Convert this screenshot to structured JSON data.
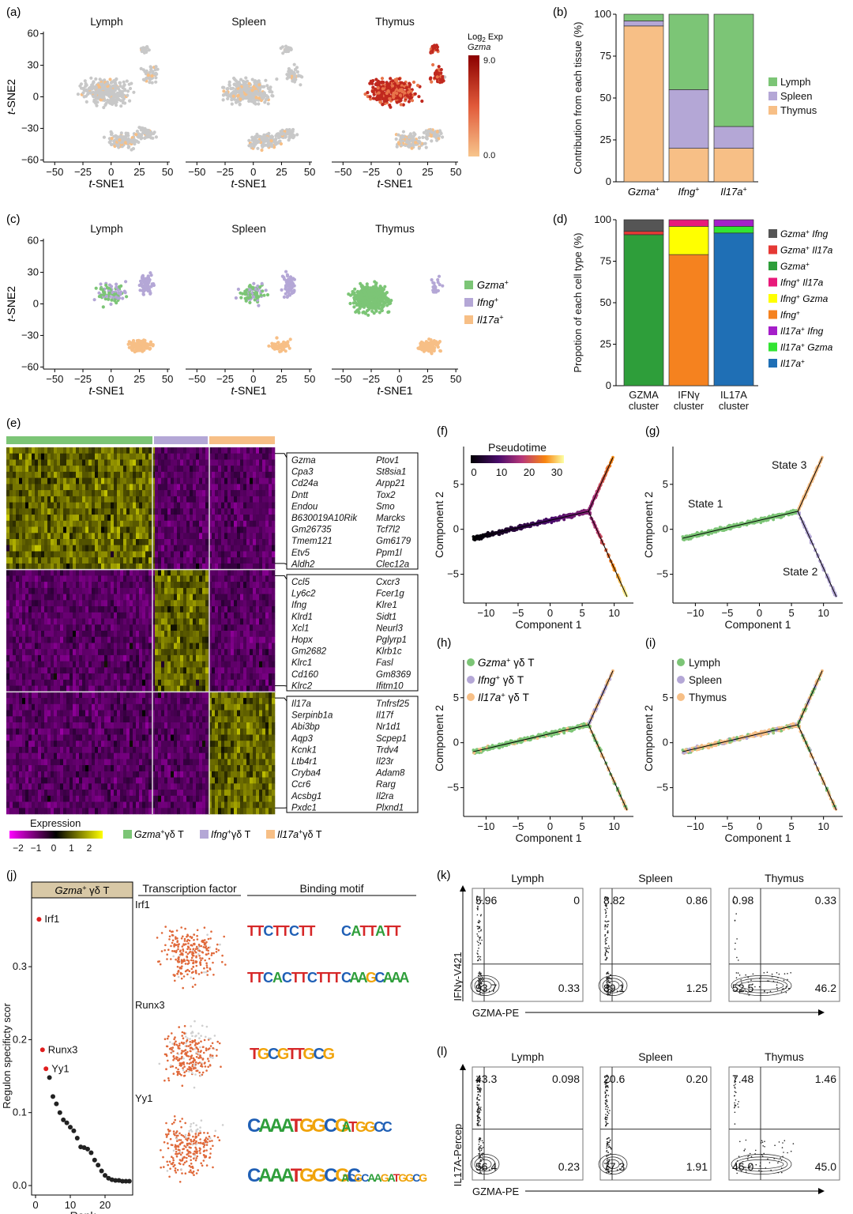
{
  "panels": {
    "a": "(a)",
    "b": "(b)",
    "c": "(c)",
    "d": "(d)",
    "e": "(e)",
    "f": "(f)",
    "g": "(g)",
    "h": "(h)",
    "i": "(i)",
    "j": "(j)",
    "k": "(k)",
    "l": "(l)"
  },
  "tissues": [
    "Lymph",
    "Spleen",
    "Thymus"
  ],
  "colors": {
    "gzma": "#7cc576",
    "ifng": "#b4a7d6",
    "il17a": "#f7bf86",
    "grey": "#c8c8c8",
    "gzma_dd": "#555555",
    "gzma_il17": "#e53935",
    "gzma_only": "#2e9e3a",
    "ifng_il17": "#e8197a",
    "ifng_gzma": "#ffff00",
    "ifng_only": "#f5821f",
    "il17_ifng": "#a51ec9",
    "il17_gzma": "#33e433",
    "il17_only": "#1f6fb5",
    "tf_dot": "#e0693a",
    "rank_red": "#e01e1e"
  },
  "tsne": {
    "xlabel_prefix": "t",
    "xlabel_suffix": "-SNE1",
    "ylabel_prefix": "t",
    "ylabel_suffix": "-SNE2",
    "xticks": [
      -50,
      -25,
      0,
      25,
      50
    ],
    "yticks": [
      60,
      30,
      0,
      -30,
      -60
    ],
    "xlim": [
      -60,
      52
    ],
    "ylim": [
      -62,
      62
    ]
  },
  "legend_a": {
    "title1": "Log",
    "title_sub": "2",
    "title2": " Exp",
    "gene": "Gzma",
    "max": "9.0",
    "min": "0.0"
  },
  "legend_c": [
    "Gzma",
    "Ifng",
    "Il17a"
  ],
  "chart_b": {
    "type": "bar",
    "ylabel": "Contribution from each tissue (%)",
    "categories": [
      "Gzma",
      "Ifng",
      "Il17a"
    ],
    "yticks": [
      0,
      25,
      50,
      75,
      100
    ],
    "series": [
      {
        "name": "Thymus",
        "values": [
          93,
          20,
          20
        ]
      },
      {
        "name": "Spleen",
        "values": [
          3,
          35,
          13
        ]
      },
      {
        "name": "Lymph",
        "values": [
          4,
          45,
          67
        ]
      }
    ],
    "legend": [
      "Lymph",
      "Spleen",
      "Thymus"
    ]
  },
  "chart_d": {
    "type": "bar",
    "ylabel": "Propotion of each cell type (%)",
    "categories": [
      "GZMA",
      "IFNγ",
      "IL17A"
    ],
    "cat_sub": "cluster",
    "yticks": [
      0,
      25,
      50,
      75,
      100
    ],
    "stacks": [
      [
        {
          "c": "gzma_only",
          "v": 91
        },
        {
          "c": "gzma_il17",
          "v": 2
        },
        {
          "c": "gzma_dd",
          "v": 7
        }
      ],
      [
        {
          "c": "ifng_only",
          "v": 79
        },
        {
          "c": "ifng_gzma",
          "v": 17
        },
        {
          "c": "ifng_il17",
          "v": 4
        }
      ],
      [
        {
          "c": "il17_only",
          "v": 92
        },
        {
          "c": "il17_gzma",
          "v": 4
        },
        {
          "c": "il17_ifng",
          "v": 4
        }
      ]
    ],
    "legend": [
      {
        "c": "gzma_dd",
        "a": "Gzma",
        "b": " Ifng",
        "plus": true
      },
      {
        "c": "gzma_il17",
        "a": "Gzma",
        "b": " Il17a",
        "plus": true
      },
      {
        "c": "gzma_only",
        "a": "Gzma",
        "b": "",
        "plus": false
      },
      {
        "c": "ifng_il17",
        "a": "Ifng",
        "b": " Il17a",
        "plus": true
      },
      {
        "c": "ifng_gzma",
        "a": "Ifng",
        "b": " Gzma",
        "plus": true
      },
      {
        "c": "ifng_only",
        "a": "Ifng",
        "b": "",
        "plus": false
      },
      {
        "c": "il17_ifng",
        "a": "Il17a",
        "b": " Ifng",
        "plus": true
      },
      {
        "c": "il17_gzma",
        "a": "Il17a",
        "b": " Gzma",
        "plus": true
      },
      {
        "c": "il17_only",
        "a": "Il17a",
        "b": "",
        "plus": false
      }
    ]
  },
  "heatmap": {
    "genes1": [
      "Gzma",
      "Cpa3",
      "Cd24a",
      "Dntt",
      "Endou",
      "B630019A10Rik",
      "Gm26735",
      "Tmem121",
      "Etv5",
      "Aldh2",
      "Ptov1",
      "St8sia1",
      "Arpp21",
      "Tox2",
      "Smo",
      "Marcks",
      "Tcf7l2",
      "Gm6179",
      "Ppm1l",
      "Clec12a"
    ],
    "genes2": [
      "Ccl5",
      "Ly6c2",
      "Ifng",
      "Klrd1",
      "Xcl1",
      "Hopx",
      "Gm2682",
      "Klrc1",
      "Cd160",
      "Klrc2",
      "Cxcr3",
      "Fcer1g",
      "Klre1",
      "Sidt1",
      "Neurl3",
      "Pglyrp1",
      "Klrb1c",
      "Fasl",
      "Gm8369",
      "Ifitm10"
    ],
    "genes3": [
      "Il17a",
      "Serpinb1a",
      "Abi3bp",
      "Aqp3",
      "Kcnk1",
      "Ltb4r1",
      "Cryba4",
      "Ccr6",
      "Acsbg1",
      "Pxdc1",
      "Tnfrsf25",
      "Il17f",
      "Nr1d1",
      "Scpep1",
      "Trdv4",
      "Il23r",
      "Adam8",
      "Rarg",
      "Il2ra",
      "Plxnd1"
    ],
    "expr_label": "Expression",
    "expr_ticks": [
      "−2",
      "−1",
      "0",
      "1",
      "2"
    ],
    "legend": [
      {
        "a": "Gzma",
        "b": "γδ T"
      },
      {
        "a": "Ifng",
        "b": "γδ T"
      },
      {
        "a": "Il17a",
        "b": "γδ T"
      }
    ]
  },
  "traj": {
    "xlabel": "Component 1",
    "ylabel": "Component 2",
    "xticks": [
      -10,
      -5,
      0,
      5,
      10
    ],
    "yticks": [
      5,
      0,
      -5
    ],
    "pseudotime": "Pseudotime",
    "pt_ticks": [
      "0",
      "10",
      "20",
      "30"
    ],
    "states": [
      "State 1",
      "State 2",
      "State 3"
    ],
    "h_legend": [
      {
        "a": "Gzma",
        "b": " γδ T"
      },
      {
        "a": "Ifng",
        "b": " γδ T"
      },
      {
        "a": "Il17a",
        "b": " γδ T"
      }
    ],
    "i_legend": [
      "Lymph",
      "Spleen",
      "Thymus"
    ]
  },
  "chart_j": {
    "type": "scatter",
    "box_a": "Gzma",
    "box_b": " γδ T",
    "ylabel": "Regulon specificty scor",
    "xlabel": "Rank",
    "xticks": [
      0,
      10,
      20
    ],
    "yticks": [
      0.0,
      0.1,
      0.2,
      0.3
    ],
    "values": [
      0.365,
      0.186,
      0.16,
      0.148,
      0.122,
      0.112,
      0.1,
      0.09,
      0.086,
      0.08,
      0.075,
      0.065,
      0.053,
      0.052,
      0.05,
      0.045,
      0.035,
      0.028,
      0.02,
      0.014,
      0.01,
      0.008,
      0.007,
      0.007,
      0.006,
      0.006,
      0.006
    ],
    "labeled": [
      {
        "rank": 1,
        "name": "Irf1"
      },
      {
        "rank": 2,
        "name": "Runx3"
      },
      {
        "rank": 3,
        "name": "Yy1"
      }
    ],
    "col_tf": "Transcription factor",
    "col_motif": "Binding motif",
    "tfs": [
      "Irf1",
      "Runx3",
      "Yy1"
    ],
    "motifs": {
      "irf1_a": [
        "T",
        "T",
        "C",
        "T",
        "T",
        "C",
        "T",
        "T"
      ],
      "irf1_b": [
        "C",
        "A",
        "T",
        "T",
        "A",
        "T",
        "T"
      ],
      "irf1_c": [
        "T",
        "T",
        "C",
        "A",
        "C",
        "T",
        "T",
        "C",
        "T",
        "T",
        "T"
      ],
      "irf1_d": [
        "C",
        "A",
        "A",
        "G",
        "C",
        "A",
        "A",
        "A"
      ],
      "runx3": [
        "T",
        "G",
        "C",
        "G",
        "T",
        "T",
        "G",
        "C",
        "G"
      ],
      "yy1_a": [
        "C",
        "A",
        "A",
        "A",
        "T",
        "G",
        "G",
        "C",
        "G"
      ],
      "yy1_b": [
        "A",
        "T",
        "G",
        "G",
        "C",
        "C"
      ],
      "yy1_c": [
        "C",
        "A",
        "A",
        "A",
        "T",
        "G",
        "G",
        "C",
        "G",
        "C"
      ],
      "yy1_d": [
        "A",
        "C",
        "G",
        "C",
        "A",
        "A",
        "G",
        "A",
        "T",
        "G",
        "G",
        "C",
        "G"
      ]
    }
  },
  "flow_k": {
    "ylabel": "IFNγ-V421",
    "xlabel": "GZMA-PE",
    "tissues": [
      "Lymph",
      "Spleen",
      "Thymus"
    ],
    "quads": [
      [
        "5.96",
        "0",
        "93.7",
        "0.33"
      ],
      [
        "8.82",
        "0.86",
        "89.1",
        "1.25"
      ],
      [
        "0.98",
        "0.33",
        "52.5",
        "46.2"
      ]
    ]
  },
  "flow_l": {
    "ylabel": "IL17A-Percep",
    "xlabel": "GZMA-PE",
    "tissues": [
      "Lymph",
      "Spleen",
      "Thymus"
    ],
    "quads": [
      [
        "43.3",
        "0.098",
        "56.4",
        "0.23"
      ],
      [
        "20.6",
        "0.20",
        "77.3",
        "1.91"
      ],
      [
        "7.48",
        "1.46",
        "46.0",
        "45.0"
      ]
    ]
  }
}
